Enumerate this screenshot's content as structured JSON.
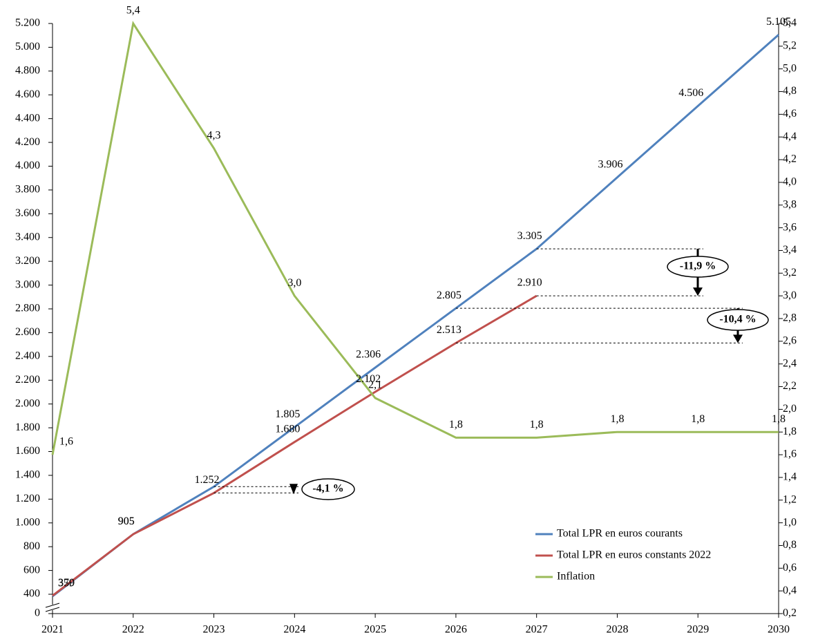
{
  "chart_data": {
    "type": "line",
    "categories": [
      "2021",
      "2022",
      "2023",
      "2024",
      "2025",
      "2026",
      "2027",
      "2028",
      "2029",
      "2030"
    ],
    "series": [
      {
        "name": "Total LPR en euros courants",
        "color": "#4f81bd",
        "values": [
          359,
          905,
          1305,
          1805,
          2306,
          2805,
          3305,
          3906,
          4506,
          5105
        ],
        "value_labels": [
          "359",
          "905",
          null,
          "1.805",
          "2.306",
          "2.805",
          "3.305",
          "3.906",
          "4.506",
          "5.105"
        ]
      },
      {
        "name": "Total LPR en euros constants 2022",
        "color": "#c0504d",
        "values": [
          370,
          905,
          1252,
          1680,
          2102,
          2513,
          2910,
          null,
          null,
          null
        ],
        "value_labels": [
          "370",
          "905",
          "1.252",
          "1.680",
          "2.102",
          "2.513",
          "2.910",
          null,
          null,
          null
        ]
      },
      {
        "name": "Inflation",
        "color": "#9bbb59",
        "axis": "y2",
        "values": [
          1.6,
          5.4,
          4.3,
          3.0,
          2.1,
          1.75,
          1.75,
          1.8,
          1.8,
          1.8
        ],
        "value_labels": [
          "1,6",
          "5,4",
          "4,3",
          "3,0",
          "2,1",
          "1,8",
          "1,8",
          "1,8",
          "1,8",
          "1,8"
        ]
      }
    ],
    "ylim": [
      0,
      5200
    ],
    "y_axis_break": true,
    "yticks": [
      0,
      400,
      600,
      800,
      {
        "value": 1000,
        "label": "1.000"
      },
      {
        "value": 1200,
        "label": "1.200"
      },
      {
        "value": 1400,
        "label": "1.400"
      },
      {
        "value": 1600,
        "label": "1.600"
      },
      {
        "value": 1800,
        "label": "1.800"
      },
      {
        "value": 2000,
        "label": "2.000"
      },
      {
        "value": 2200,
        "label": "2.200"
      },
      {
        "value": 2400,
        "label": "2.400"
      },
      {
        "value": 2600,
        "label": "2.600"
      },
      {
        "value": 2800,
        "label": "2.800"
      },
      {
        "value": 3000,
        "label": "3.000"
      },
      {
        "value": 3200,
        "label": "3.200"
      },
      {
        "value": 3400,
        "label": "3.400"
      },
      {
        "value": 3600,
        "label": "3.600"
      },
      {
        "value": 3800,
        "label": "3.800"
      },
      {
        "value": 4000,
        "label": "4.000"
      },
      {
        "value": 4200,
        "label": "4.200"
      },
      {
        "value": 4400,
        "label": "4.400"
      },
      {
        "value": 4600,
        "label": "4.600"
      },
      {
        "value": 4800,
        "label": "4.800"
      },
      {
        "value": 5000,
        "label": "5.000"
      },
      {
        "value": 5200,
        "label": "5.200"
      }
    ],
    "y2lim": [
      0.2,
      5.4
    ],
    "y2ticks": [
      {
        "value": 0.2,
        "label": "0,2"
      },
      {
        "value": 0.4,
        "label": "0,4"
      },
      {
        "value": 0.6,
        "label": "0,6"
      },
      {
        "value": 0.8,
        "label": "0,8"
      },
      {
        "value": 1.0,
        "label": "1,0"
      },
      {
        "value": 1.2,
        "label": "1,2"
      },
      {
        "value": 1.4,
        "label": "1,4"
      },
      {
        "value": 1.6,
        "label": "1,6"
      },
      {
        "value": 1.8,
        "label": "1,8"
      },
      {
        "value": 2.0,
        "label": "2,0"
      },
      {
        "value": 2.2,
        "label": "2,2"
      },
      {
        "value": 2.4,
        "label": "2,4"
      },
      {
        "value": 2.6,
        "label": "2,6"
      },
      {
        "value": 2.8,
        "label": "2,8"
      },
      {
        "value": 3.0,
        "label": "3,0"
      },
      {
        "value": 3.2,
        "label": "3,2"
      },
      {
        "value": 3.4,
        "label": "3,4"
      },
      {
        "value": 3.6,
        "label": "3,6"
      },
      {
        "value": 3.8,
        "label": "3,8"
      },
      {
        "value": 4.0,
        "label": "4,0"
      },
      {
        "value": 4.2,
        "label": "4,2"
      },
      {
        "value": 4.4,
        "label": "4,4"
      },
      {
        "value": 4.6,
        "label": "4,6"
      },
      {
        "value": 4.8,
        "label": "4,8"
      },
      {
        "value": 5.0,
        "label": "5,0"
      },
      {
        "value": 5.2,
        "label": "5,2"
      },
      {
        "value": 5.4,
        "label": "5,4"
      }
    ],
    "grid": false,
    "legend": "lower right",
    "annotations": [
      "-4,1 %",
      "-11,9 %",
      "-10,4 %"
    ]
  }
}
